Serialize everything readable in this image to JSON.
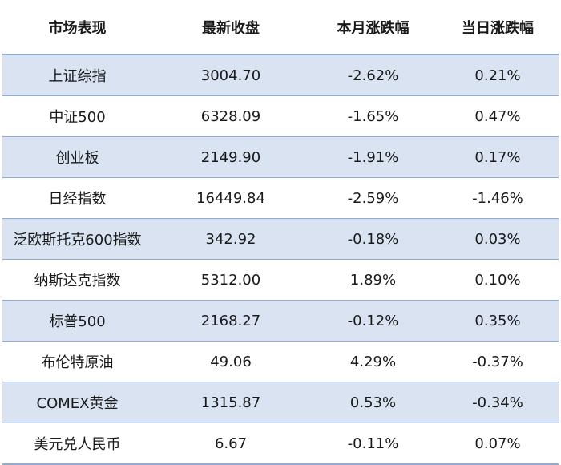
{
  "table": {
    "headers": [
      "市场表现",
      "最新收盘",
      "本月涨跌幅",
      "当日涨跌幅"
    ],
    "rows": [
      [
        "上证综指",
        "3004.70",
        "-2.62%",
        "0.21%"
      ],
      [
        "中证500",
        "6328.09",
        "-1.65%",
        "0.47%"
      ],
      [
        "创业板",
        "2149.90",
        "-1.91%",
        "0.17%"
      ],
      [
        "日经指数",
        "16449.84",
        "-2.59%",
        "-1.46%"
      ],
      [
        "泛欧斯托克600指数",
        "342.92",
        "-0.18%",
        "0.03%"
      ],
      [
        "纳斯达克指数",
        "5312.00",
        "1.89%",
        "0.10%"
      ],
      [
        "标普500",
        "2168.27",
        "-0.12%",
        "0.35%"
      ],
      [
        "布伦特原油",
        "49.06",
        "4.29%",
        "-0.37%"
      ],
      [
        "COMEX黄金",
        "1315.87",
        "0.53%",
        "-0.34%"
      ],
      [
        "美元兑人民币",
        "6.67",
        "-0.11%",
        "0.07%"
      ]
    ]
  },
  "colors": {
    "header_border": "#8faad6",
    "stripe": "#d9e3f1",
    "text": "#1a1a1a"
  }
}
